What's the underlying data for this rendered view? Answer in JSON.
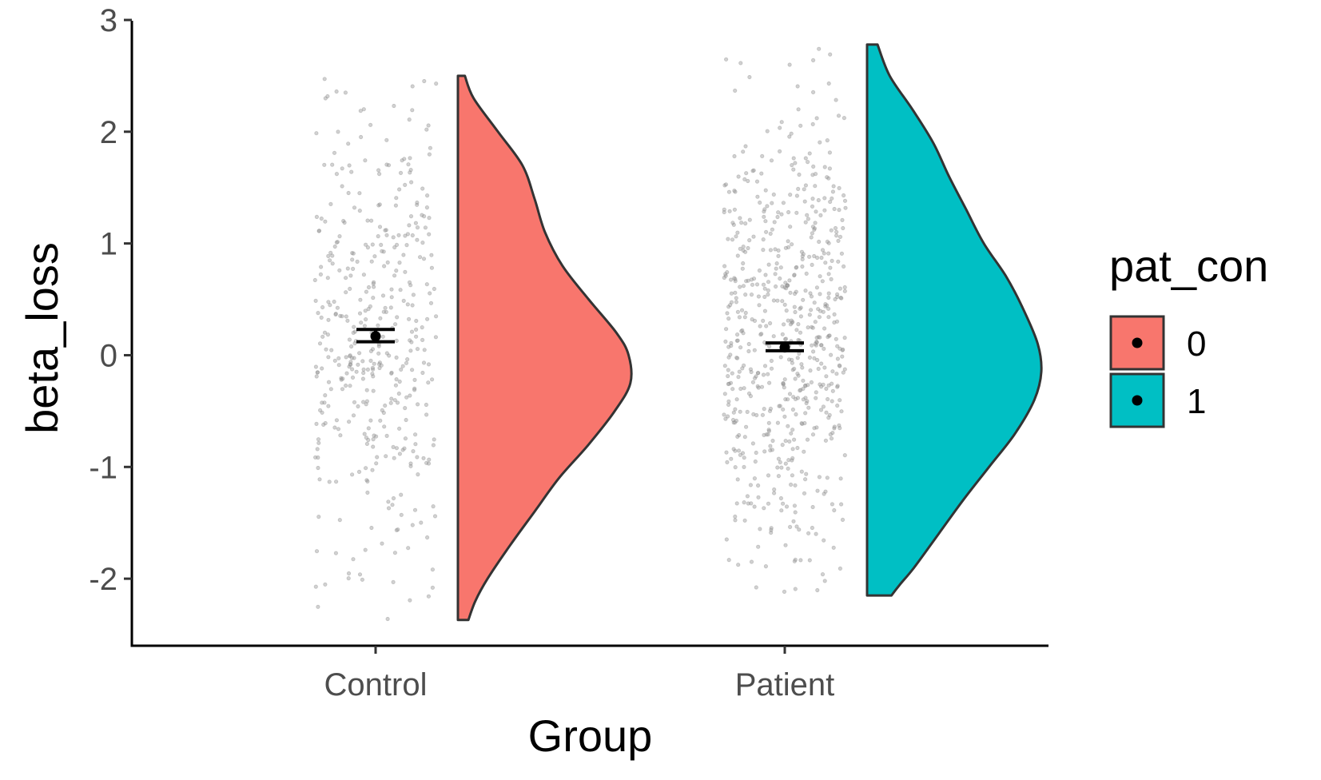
{
  "chart_data": {
    "type": "raincloud",
    "title": "",
    "xlabel": "Group",
    "ylabel": "beta_loss",
    "categories": [
      "Control",
      "Patient"
    ],
    "ylim": [
      -2.6,
      3.05
    ],
    "yticks": [
      -2,
      -1,
      0,
      1,
      2,
      3
    ],
    "ytick_labels": [
      "-2",
      "-1",
      "0",
      "1",
      "2",
      "3"
    ],
    "grid": false,
    "legend": {
      "title": "pat_con",
      "placement": "right",
      "entries": [
        {
          "label": "0",
          "color": "#F8766D"
        },
        {
          "label": "1",
          "color": "#00BFC4"
        }
      ]
    },
    "series": [
      {
        "group": "Control",
        "fill": "#F8766D",
        "mean": 0.17,
        "se_low": 0.12,
        "se_high": 0.23,
        "range": [
          -2.37,
          2.5
        ],
        "n_points": 420,
        "density": [
          {
            "y": 2.5,
            "d": 0.04
          },
          {
            "y": 2.3,
            "d": 0.09
          },
          {
            "y": 2.0,
            "d": 0.23
          },
          {
            "y": 1.7,
            "d": 0.37
          },
          {
            "y": 1.4,
            "d": 0.44
          },
          {
            "y": 1.1,
            "d": 0.5
          },
          {
            "y": 0.8,
            "d": 0.6
          },
          {
            "y": 0.5,
            "d": 0.75
          },
          {
            "y": 0.2,
            "d": 0.91
          },
          {
            "y": 0.0,
            "d": 0.98
          },
          {
            "y": -0.25,
            "d": 0.99
          },
          {
            "y": -0.5,
            "d": 0.9
          },
          {
            "y": -0.8,
            "d": 0.75
          },
          {
            "y": -1.1,
            "d": 0.58
          },
          {
            "y": -1.4,
            "d": 0.44
          },
          {
            "y": -1.7,
            "d": 0.3
          },
          {
            "y": -2.0,
            "d": 0.17
          },
          {
            "y": -2.2,
            "d": 0.1
          },
          {
            "y": -2.37,
            "d": 0.06
          }
        ]
      },
      {
        "group": "Patient",
        "fill": "#00BFC4",
        "mean": 0.07,
        "se_low": 0.04,
        "se_high": 0.11,
        "range": [
          -2.15,
          2.78
        ],
        "n_points": 640,
        "density": [
          {
            "y": 2.78,
            "d": 0.06
          },
          {
            "y": 2.5,
            "d": 0.13
          },
          {
            "y": 2.2,
            "d": 0.26
          },
          {
            "y": 1.9,
            "d": 0.38
          },
          {
            "y": 1.6,
            "d": 0.47
          },
          {
            "y": 1.3,
            "d": 0.57
          },
          {
            "y": 1.0,
            "d": 0.67
          },
          {
            "y": 0.7,
            "d": 0.8
          },
          {
            "y": 0.4,
            "d": 0.9
          },
          {
            "y": 0.1,
            "d": 0.98
          },
          {
            "y": -0.15,
            "d": 1.0
          },
          {
            "y": -0.4,
            "d": 0.96
          },
          {
            "y": -0.7,
            "d": 0.85
          },
          {
            "y": -1.0,
            "d": 0.7
          },
          {
            "y": -1.3,
            "d": 0.55
          },
          {
            "y": -1.6,
            "d": 0.41
          },
          {
            "y": -1.9,
            "d": 0.27
          },
          {
            "y": -2.05,
            "d": 0.19
          },
          {
            "y": -2.15,
            "d": 0.14
          }
        ]
      }
    ]
  }
}
